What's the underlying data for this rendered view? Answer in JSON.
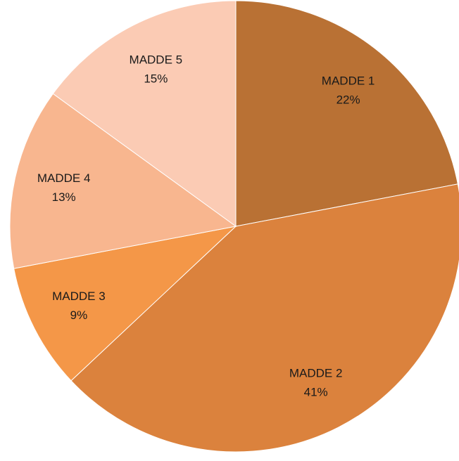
{
  "chart_data": {
    "type": "pie",
    "categories": [
      "MADDE 1",
      "MADDE 2",
      "MADDE 3",
      "MADDE 4",
      "MADDE 5"
    ],
    "values": [
      22,
      41,
      9,
      13,
      15
    ],
    "value_labels": [
      "22%",
      "41%",
      "9%",
      "13%",
      "15%"
    ],
    "colors": [
      "#b97134",
      "#db823d",
      "#f49748",
      "#f8b68f",
      "#fbcbb4"
    ]
  }
}
